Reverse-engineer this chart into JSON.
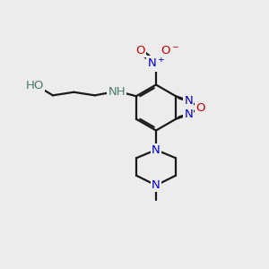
{
  "bg_color": "#ececec",
  "atom_colors": {
    "N": "#0000cc",
    "O": "#cc0000",
    "H": "#4a7a6a",
    "bond": "#1a1a1a"
  },
  "figsize": [
    3.0,
    3.0
  ],
  "dpi": 100
}
